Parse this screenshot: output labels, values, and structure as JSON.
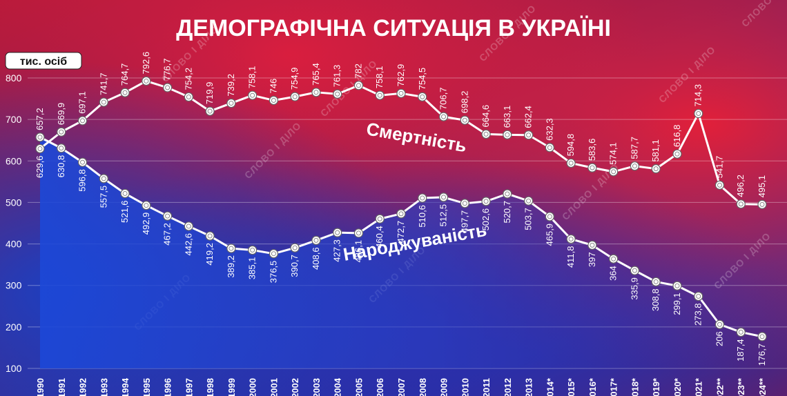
{
  "chart_data": {
    "type": "line",
    "title": "ДЕМОГРАФІЧНА СИТУАЦІЯ В УКРАЇНІ",
    "unit_label": "тис. осіб",
    "watermark": "СЛОВО І ДІЛО",
    "ylim": [
      100,
      800
    ],
    "yticks": [
      100,
      200,
      300,
      400,
      500,
      600,
      700,
      800
    ],
    "grid": true,
    "categories": [
      "1990",
      "1991",
      "1992",
      "1993",
      "1994",
      "1995",
      "1996",
      "1997",
      "1998",
      "1999",
      "2000",
      "2001",
      "2002",
      "2003",
      "2004",
      "2005",
      "2006",
      "2007",
      "2008",
      "2009",
      "2010",
      "2011",
      "2012",
      "2013",
      "2014*",
      "2015*",
      "2016*",
      "2017*",
      "2018*",
      "2019*",
      "2020*",
      "2021*",
      "2022**",
      "2023**",
      "2024**"
    ],
    "series": [
      {
        "name": "Смертність",
        "values": [
          629.6,
          669.9,
          697.1,
          741.7,
          764.7,
          792.6,
          776.7,
          754.2,
          719.9,
          739.2,
          758.1,
          746,
          754.9,
          765.4,
          761.3,
          782,
          758.1,
          762.9,
          754.5,
          706.7,
          698.2,
          664.6,
          663.1,
          662.4,
          632.3,
          594.8,
          583.6,
          574.1,
          587.7,
          581.1,
          616.8,
          714.3,
          541.7,
          496.2,
          495.1
        ],
        "labels": [
          "629,6",
          "669,9",
          "697,1",
          "741,7",
          "764,7",
          "792,6",
          "776,7",
          "754,2",
          "719,9",
          "739,2",
          "758,1",
          "746",
          "754,9",
          "765,4",
          "761,3",
          "782",
          "758,1",
          "762,9",
          "754,5",
          "706,7",
          "698,2",
          "664,6",
          "663,1",
          "662,4",
          "632,3",
          "594,8",
          "583,6",
          "574,1",
          "587,7",
          "581,1",
          "616,8",
          "714,3",
          "541,7",
          "496,2",
          "495,1"
        ]
      },
      {
        "name": "Народжуваність",
        "values": [
          657.2,
          630.8,
          596.8,
          557.5,
          521.6,
          492.9,
          467.2,
          442.6,
          419.2,
          389.2,
          385.1,
          376.5,
          390.7,
          408.6,
          427.3,
          426.1,
          460.4,
          472.7,
          510.6,
          512.5,
          497.7,
          502.6,
          520.7,
          503.7,
          465.9,
          411.8,
          397,
          364,
          335.9,
          308.8,
          299.1,
          273.8,
          206,
          187.4,
          176.7
        ],
        "labels": [
          "657,2",
          "630,8",
          "596,8",
          "557,5",
          "521,6",
          "492,9",
          "467,2",
          "442,6",
          "419,2",
          "389,2",
          "385,1",
          "376,5",
          "390,7",
          "408,6",
          "427,3",
          "426,1",
          "460,4",
          "472,7",
          "510,6",
          "512,5",
          "497,7",
          "502,6",
          "520,7",
          "503,7",
          "465,9",
          "411,8",
          "397",
          "364",
          "335,9",
          "308,8",
          "299,1",
          "273,8",
          "206",
          "187,4",
          "176,7"
        ]
      }
    ]
  }
}
